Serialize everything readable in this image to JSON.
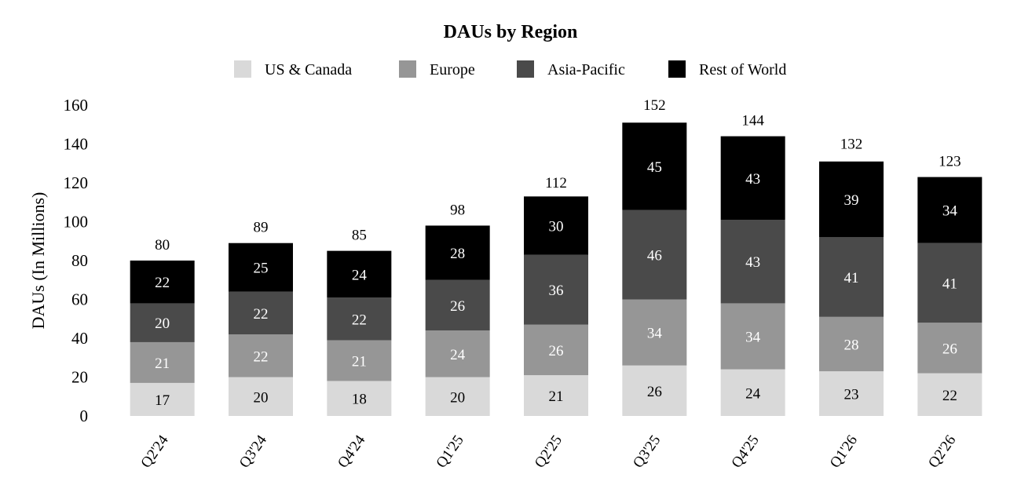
{
  "chart_data": {
    "type": "bar",
    "stacked": true,
    "title": "DAUs by Region",
    "ylabel": "DAUs (In Millions)",
    "xlabel": "",
    "ylim": [
      0,
      160
    ],
    "yticks": [
      "0",
      "20",
      "40",
      "60",
      "80",
      "100",
      "120",
      "140",
      "160"
    ],
    "ytick_values": [
      0,
      20,
      40,
      60,
      80,
      100,
      120,
      140,
      160
    ],
    "grid": false,
    "legend_position": "top",
    "categories": [
      "Q2'24",
      "Q3'24",
      "Q4'24",
      "Q1'25",
      "Q2'25",
      "Q3'25",
      "Q4'25",
      "Q1'26",
      "Q2'26"
    ],
    "series": [
      {
        "name": "US & Canada",
        "color": "#d9d9d9",
        "label_color": "#000000",
        "values": [
          17,
          20,
          18,
          20,
          21,
          26,
          24,
          23,
          22
        ]
      },
      {
        "name": "Europe",
        "color": "#969696",
        "label_color": "#ffffff",
        "values": [
          21,
          22,
          21,
          24,
          26,
          34,
          34,
          28,
          26
        ]
      },
      {
        "name": "Asia-Pacific",
        "color": "#4a4a4a",
        "label_color": "#ffffff",
        "values": [
          20,
          22,
          22,
          26,
          36,
          46,
          43,
          41,
          41
        ]
      },
      {
        "name": "Rest of World",
        "color": "#000000",
        "label_color": "#ffffff",
        "values": [
          22,
          25,
          24,
          28,
          30,
          45,
          43,
          39,
          34
        ]
      }
    ],
    "totals": [
      80,
      89,
      85,
      98,
      112,
      152,
      144,
      132,
      123
    ]
  }
}
